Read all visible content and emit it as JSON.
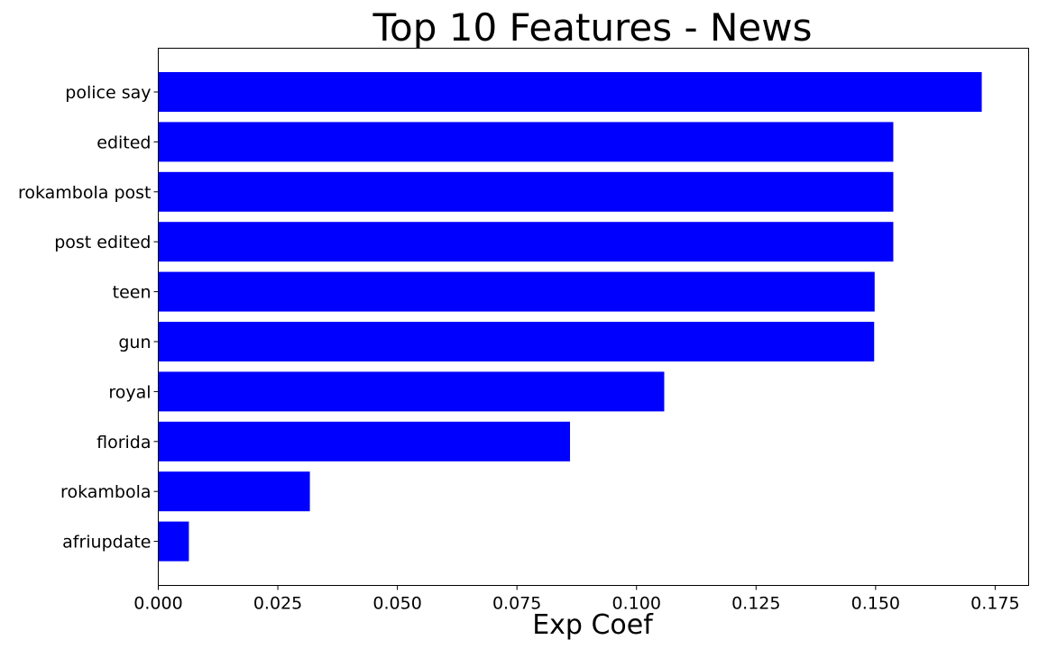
{
  "chart_data": {
    "type": "bar",
    "orientation": "horizontal",
    "title": "Top 10 Features - News",
    "xlabel": "Exp Coef",
    "ylabel": "",
    "categories": [
      "police say",
      "edited",
      "rokambola post",
      "post edited",
      "teen",
      "gun",
      "royal",
      "florida",
      "rokambola",
      "afriupdate"
    ],
    "values": [
      0.1722,
      0.1537,
      0.1537,
      0.1537,
      0.1498,
      0.1497,
      0.1058,
      0.0861,
      0.0317,
      0.0064
    ],
    "xlim": [
      0,
      0.182
    ],
    "xticks": [
      "0.000",
      "0.025",
      "0.050",
      "0.075",
      "0.100",
      "0.125",
      "0.150",
      "0.175"
    ],
    "xtick_values": [
      0,
      0.025,
      0.05,
      0.075,
      0.1,
      0.125,
      0.15,
      0.175
    ],
    "bar_color": "#0000ff",
    "grid": false,
    "legend": "none"
  }
}
